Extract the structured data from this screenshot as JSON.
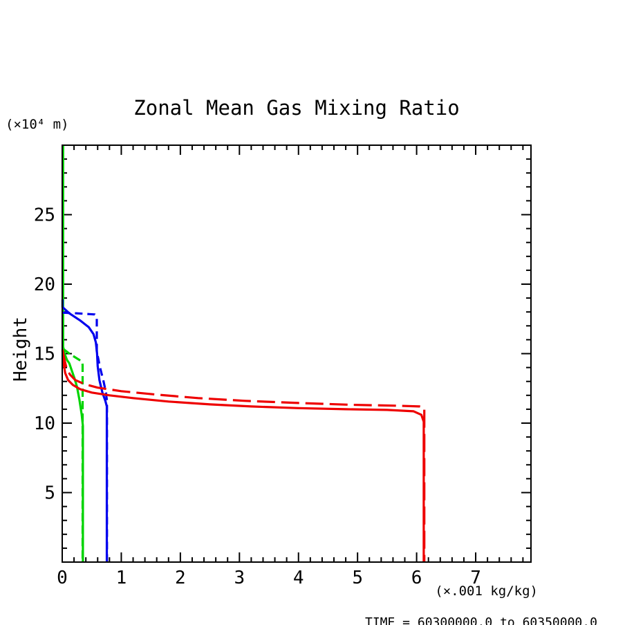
{
  "title": "Zonal Mean Gas Mixing Ratio",
  "y_axis": {
    "unit_label": "(×10⁴ m)",
    "axis_label": "Height",
    "tick_labels": [
      "5",
      "10",
      "15",
      "20",
      "25"
    ]
  },
  "x_axis": {
    "unit_label": "(×.001 kg/kg)",
    "tick_labels": [
      "0",
      "1",
      "2",
      "3",
      "4",
      "5",
      "6",
      "7"
    ]
  },
  "footer_annotation": "TIME = 60300000.0 to 60350000.0",
  "colors": {
    "red": "#ee0000",
    "green": "#00d400",
    "blue": "#0000ee",
    "axis": "#000000",
    "background": "#ffffff"
  },
  "chart_data": {
    "type": "line",
    "title": "Zonal Mean Gas Mixing Ratio",
    "xlabel": "(×.001 kg/kg)",
    "ylabel": "Height",
    "ylabel_units": "(×10⁴ m)",
    "xlim": [
      0,
      7.936
    ],
    "ylim": [
      0,
      30
    ],
    "x_major_ticks": [
      0,
      1,
      2,
      3,
      4,
      5,
      6,
      7
    ],
    "x_minor_step": 0.2,
    "y_major_ticks": [
      5,
      10,
      15,
      20,
      25
    ],
    "y_minor_step": 1,
    "grid": false,
    "legend": "none",
    "annotation": "TIME = 60300000.0 to 60350000.0",
    "series": [
      {
        "name": "green-solid",
        "color": "#00d400",
        "style": "solid",
        "points": [
          [
            0.015,
            30
          ],
          [
            0.015,
            15.5
          ],
          [
            0.04,
            15.0
          ],
          [
            0.08,
            14.55
          ],
          [
            0.12,
            14.3
          ],
          [
            0.16,
            13.8
          ],
          [
            0.21,
            13.2
          ],
          [
            0.25,
            12.6
          ],
          [
            0.29,
            11.7
          ],
          [
            0.33,
            10.6
          ],
          [
            0.35,
            9.8
          ],
          [
            0.35,
            0
          ]
        ]
      },
      {
        "name": "green-dashed",
        "color": "#00d400",
        "style": "dashed",
        "dash": "12 6",
        "points": [
          [
            0.015,
            15.35
          ],
          [
            0.12,
            15.0
          ],
          [
            0.25,
            14.65
          ],
          [
            0.33,
            14.45
          ],
          [
            0.345,
            14.2
          ],
          [
            0.345,
            0
          ]
        ]
      },
      {
        "name": "blue-solid",
        "color": "#0000ee",
        "style": "solid",
        "points": [
          [
            0.005,
            18.9
          ],
          [
            0.005,
            18.35
          ],
          [
            0.12,
            17.9
          ],
          [
            0.3,
            17.4
          ],
          [
            0.45,
            16.9
          ],
          [
            0.53,
            16.4
          ],
          [
            0.57,
            15.8
          ],
          [
            0.59,
            15.0
          ],
          [
            0.6,
            14.1
          ],
          [
            0.63,
            13.1
          ],
          [
            0.68,
            12.2
          ],
          [
            0.73,
            11.6
          ],
          [
            0.755,
            11.2
          ],
          [
            0.755,
            0
          ]
        ]
      },
      {
        "name": "blue-dashed",
        "color": "#0000ee",
        "style": "dashed",
        "dash": "11 7",
        "points": [
          [
            0.005,
            17.95
          ],
          [
            0.25,
            17.9
          ],
          [
            0.55,
            17.82
          ],
          [
            0.585,
            17.6
          ],
          [
            0.585,
            15.15
          ],
          [
            0.64,
            14.0
          ],
          [
            0.7,
            13.0
          ],
          [
            0.74,
            12.2
          ],
          [
            0.757,
            11.6
          ],
          [
            0.757,
            0
          ]
        ]
      },
      {
        "name": "red-solid",
        "color": "#ee0000",
        "style": "solid",
        "points": [
          [
            0.005,
            15.25
          ],
          [
            0.02,
            14.4
          ],
          [
            0.05,
            13.6
          ],
          [
            0.1,
            13.1
          ],
          [
            0.18,
            12.75
          ],
          [
            0.3,
            12.45
          ],
          [
            0.5,
            12.2
          ],
          [
            0.8,
            12.0
          ],
          [
            1.2,
            11.8
          ],
          [
            1.8,
            11.55
          ],
          [
            2.5,
            11.35
          ],
          [
            3.2,
            11.2
          ],
          [
            4.0,
            11.08
          ],
          [
            4.8,
            11.0
          ],
          [
            5.5,
            10.95
          ],
          [
            5.95,
            10.85
          ],
          [
            6.08,
            10.6
          ],
          [
            6.12,
            10.1
          ],
          [
            6.12,
            0
          ]
        ]
      },
      {
        "name": "red-dashed",
        "color": "#ee0000",
        "style": "dashed",
        "dash": "26 9",
        "points": [
          [
            0.005,
            15.3
          ],
          [
            0.03,
            14.7
          ],
          [
            0.07,
            14.0
          ],
          [
            0.13,
            13.5
          ],
          [
            0.22,
            13.1
          ],
          [
            0.38,
            12.8
          ],
          [
            0.6,
            12.55
          ],
          [
            1.0,
            12.3
          ],
          [
            1.6,
            12.05
          ],
          [
            2.3,
            11.8
          ],
          [
            3.1,
            11.6
          ],
          [
            4.0,
            11.45
          ],
          [
            4.9,
            11.32
          ],
          [
            5.7,
            11.25
          ],
          [
            6.05,
            11.2
          ],
          [
            6.13,
            11.1
          ],
          [
            6.13,
            0
          ]
        ]
      }
    ]
  }
}
